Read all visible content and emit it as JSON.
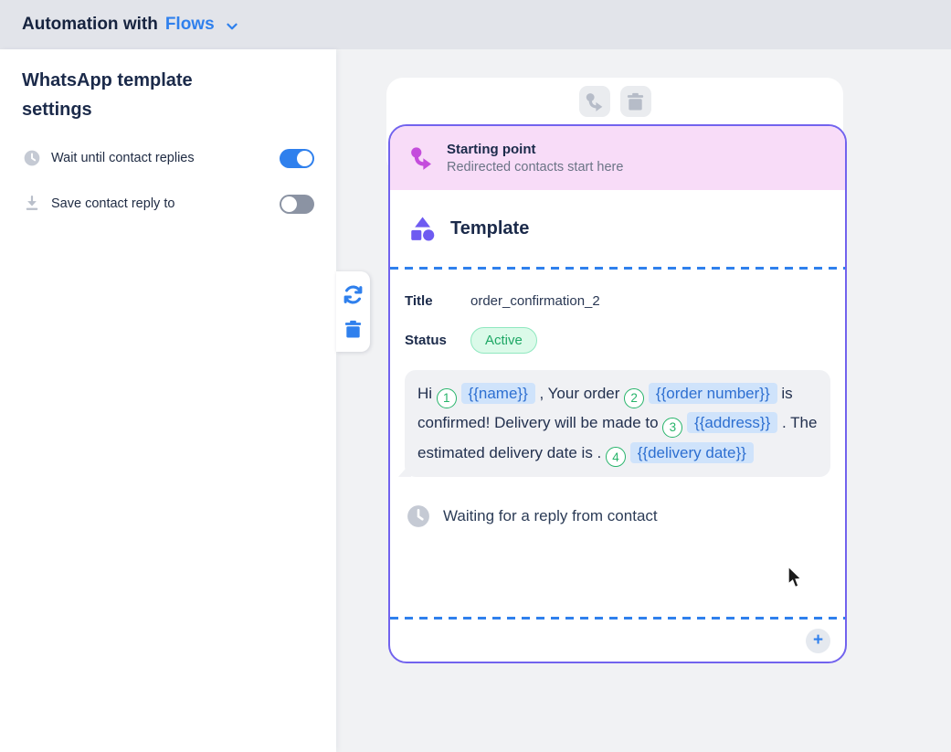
{
  "header": {
    "title_prefix": "Automation with",
    "title_accent": "Flows",
    "accent_icon": "chevron-down-icon"
  },
  "sidebar": {
    "heading": "WhatsApp template settings",
    "settings": [
      {
        "icon": "clock-icon",
        "label": "Wait until contact replies",
        "enabled": true
      },
      {
        "icon": "save-download-icon",
        "label": "Save contact reply to",
        "enabled": false
      }
    ]
  },
  "canvas": {
    "side_toolbar": {
      "icons": [
        "refresh-icon",
        "trash-icon"
      ]
    },
    "node": {
      "hover_actions": {
        "icons": [
          "redirect-icon",
          "trash-icon"
        ]
      },
      "starting_point": {
        "icon": "redirect-arrow-icon",
        "title": "Starting point",
        "subtitle": "Redirected contacts start here"
      },
      "template": {
        "icon": "shapes-icon",
        "heading": "Template",
        "title_label": "Title",
        "title_value": "order_confirmation_2",
        "status_label": "Status",
        "status_value": "Active",
        "message_segments": [
          {
            "type": "text",
            "value": "Hi"
          },
          {
            "type": "marker",
            "value": "1"
          },
          {
            "type": "chip",
            "value": "{{name}}"
          },
          {
            "type": "text",
            "value": ", Your order"
          },
          {
            "type": "marker",
            "value": "2"
          },
          {
            "type": "chip",
            "value": "{{order number}}"
          },
          {
            "type": "text",
            "value": "is confirmed! Delivery will be made to"
          },
          {
            "type": "marker",
            "value": "3"
          },
          {
            "type": "chip",
            "value": "{{address}}"
          },
          {
            "type": "text",
            "value": ". The estimated delivery date is ."
          },
          {
            "type": "marker",
            "value": "4"
          },
          {
            "type": "chip",
            "value": "{{delivery date}}"
          }
        ],
        "waiting_icon": "clock-icon",
        "waiting_text": "Waiting for a reply from contact"
      },
      "add_button_label": "+"
    }
  },
  "colors": {
    "accent_blue": "#2f80ed",
    "accent_purple": "#7263ee",
    "starting_point_pink": "#f8dcf8",
    "starting_point_magenta": "#c44ddc",
    "status_green": "#1ea765",
    "status_badge_bg": "#dbfae9",
    "chip_blue_bg": "#cfe3fb",
    "chip_blue_text": "#2d6fd1",
    "marker_green": "#26b46a",
    "topbar_bg": "#e2e4ea",
    "canvas_bg": "#f1f2f4"
  }
}
